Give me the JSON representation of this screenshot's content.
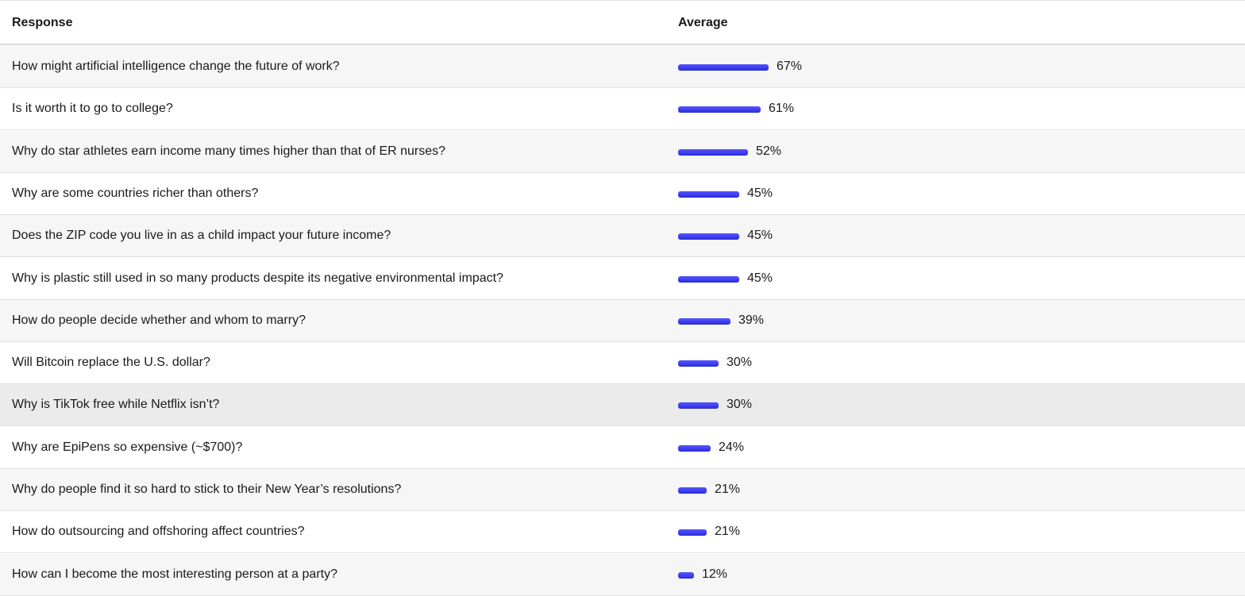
{
  "table": {
    "headers": {
      "response": "Response",
      "average": "Average"
    },
    "bar_color": "#3b3bf0",
    "rows": [
      {
        "response": "How might artificial intelligence change the future of work?",
        "average": "67%",
        "value": 67
      },
      {
        "response": "Is it worth it to go to college?",
        "average": "61%",
        "value": 61
      },
      {
        "response": "Why do star athletes earn income many times higher than that of ER nurses?",
        "average": "52%",
        "value": 52
      },
      {
        "response": "Why are some countries richer than others?",
        "average": "45%",
        "value": 45
      },
      {
        "response": "Does the ZIP code you live in as a child impact your future income?",
        "average": "45%",
        "value": 45
      },
      {
        "response": "Why is plastic still used in so many products despite its negative environmental impact?",
        "average": "45%",
        "value": 45
      },
      {
        "response": "How do people decide whether and whom to marry?",
        "average": "39%",
        "value": 39
      },
      {
        "response": "Will Bitcoin replace the U.S. dollar?",
        "average": "30%",
        "value": 30
      },
      {
        "response": "Why is TikTok free while Netflix isn’t?",
        "average": "30%",
        "value": 30
      },
      {
        "response": "Why are EpiPens so expensive (~$700)?",
        "average": "24%",
        "value": 24
      },
      {
        "response": "Why do people find it so hard to stick to their New Year’s resolutions?",
        "average": "21%",
        "value": 21
      },
      {
        "response": "How do outsourcing and offshoring affect countries?",
        "average": "21%",
        "value": 21
      },
      {
        "response": "How can I become the most interesting person at a party?",
        "average": "12%",
        "value": 12
      }
    ]
  }
}
